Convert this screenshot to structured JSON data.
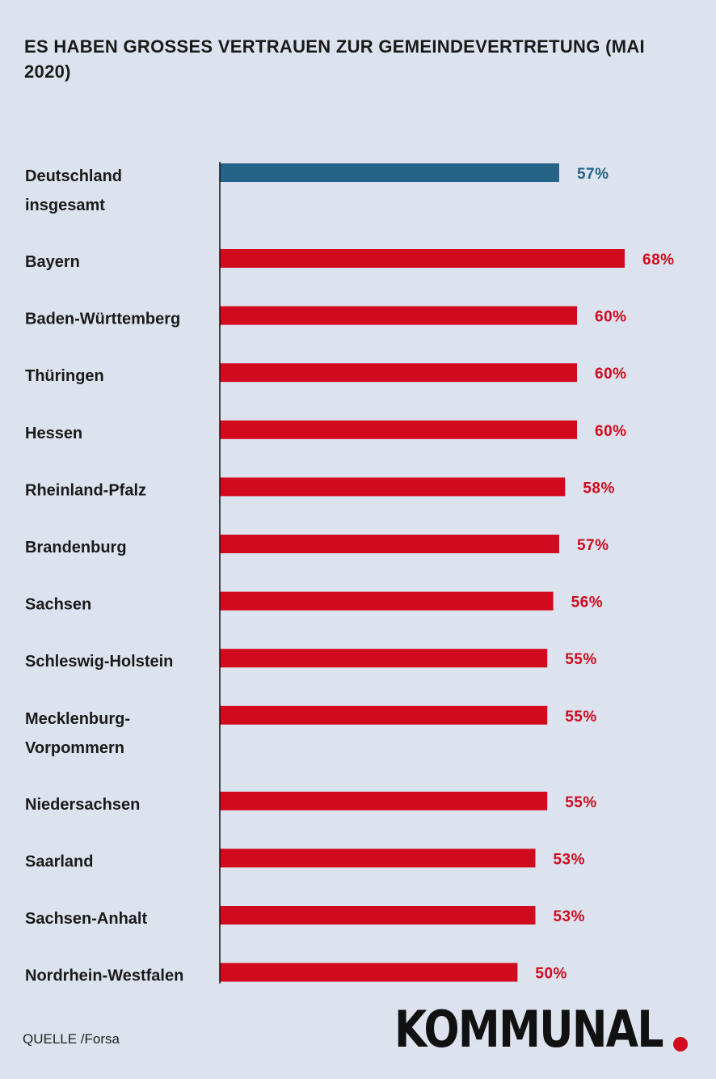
{
  "title": "ES HABEN GROSSES VERTRAUEN ZUR GEMEINDEVERTRETUNG (MAI 2020)",
  "source": "QUELLE /Forsa",
  "logo": "KOMMUNAL",
  "colors": {
    "highlight": "#256388",
    "bar": "#d10a1e",
    "background": "#dce3ee",
    "text": "#1a1a1a"
  },
  "chart_data": {
    "type": "bar",
    "orientation": "horizontal",
    "title": "ES HABEN GROSSES VERTRAUEN ZUR GEMEINDEVERTRETUNG (MAI 2020)",
    "unit": "%",
    "categories": [
      [
        "Deutschland",
        "insgesamt"
      ],
      [
        "Bayern"
      ],
      [
        "Baden-Württemberg"
      ],
      [
        "Thüringen"
      ],
      [
        "Hessen"
      ],
      [
        "Rheinland-Pfalz"
      ],
      [
        "Brandenburg"
      ],
      [
        "Sachsen"
      ],
      [
        "Schleswig-Holstein"
      ],
      [
        "Mecklenburg-",
        "Vorpommern"
      ],
      [
        "Niedersachsen"
      ],
      [
        "Saarland"
      ],
      [
        "Sachsen-Anhalt"
      ],
      [
        "Nordrhein-Westfalen"
      ]
    ],
    "values": [
      57,
      68,
      60,
      60,
      60,
      58,
      57,
      56,
      55,
      55,
      55,
      53,
      53,
      50
    ],
    "value_labels": [
      "57%",
      "68%",
      "60%",
      "60%",
      "60%",
      "58%",
      "57%",
      "56%",
      "55%",
      "55%",
      "55%",
      "53%",
      "53%",
      "50%"
    ],
    "highlight_index": 0,
    "xlim": [
      0,
      68
    ],
    "grid": false,
    "legend": false
  }
}
